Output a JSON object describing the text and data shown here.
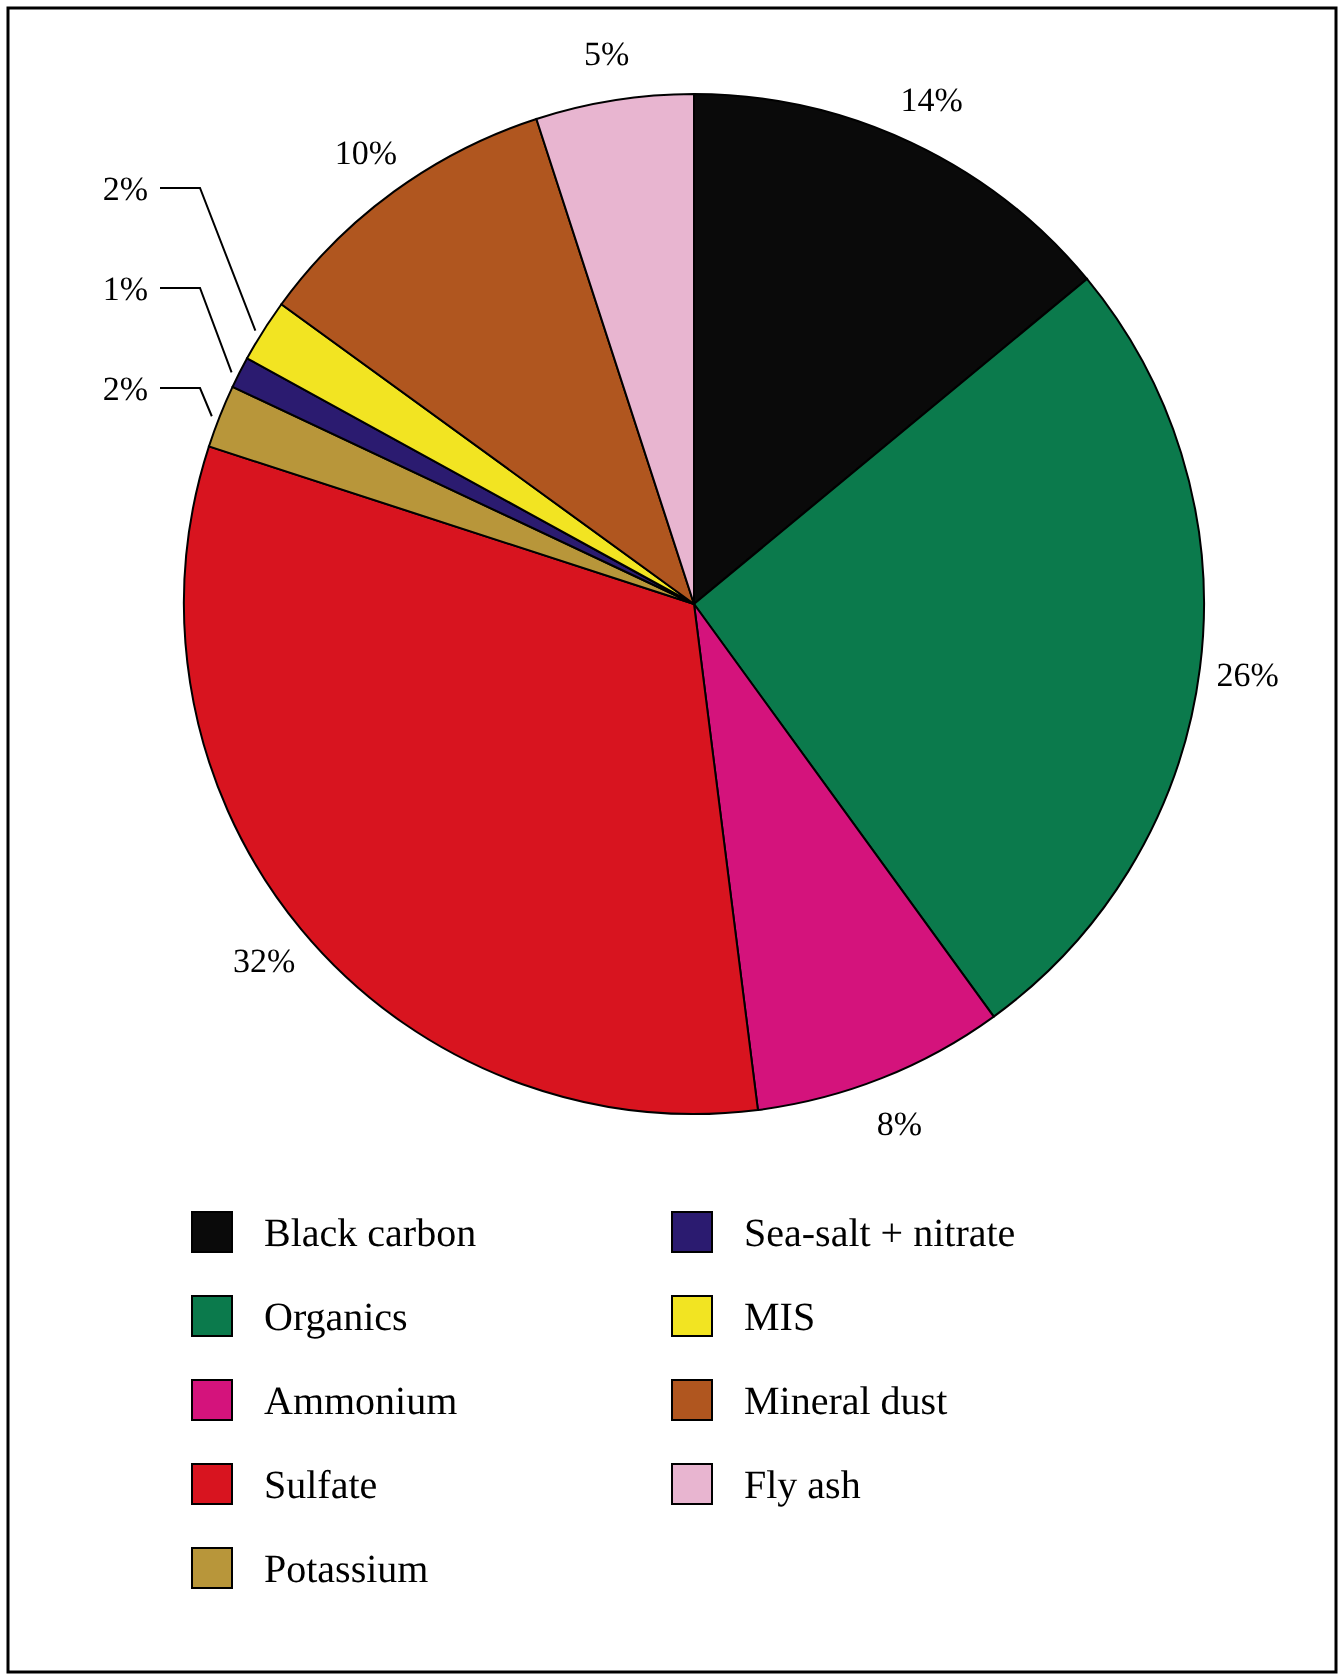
{
  "chart_data": {
    "type": "pie",
    "categories": [
      "Black carbon",
      "Organics",
      "Ammonium",
      "Sulfate",
      "Potassium",
      "Sea-salt + nitrate",
      "MIS",
      "Mineral dust",
      "Fly ash"
    ],
    "values": [
      14,
      26,
      8,
      32,
      2,
      1,
      2,
      10,
      5
    ],
    "colors": [
      "#0a0a0a",
      "#0b7a4c",
      "#d4137c",
      "#d8141f",
      "#b8963a",
      "#2b1b70",
      "#f2e422",
      "#b0561f",
      "#e8b5d0"
    ],
    "value_labels": [
      "14%",
      "26%",
      "8%",
      "32%",
      "2%",
      "1%",
      "2%",
      "10%",
      "5%"
    ],
    "legend": "bottom"
  }
}
